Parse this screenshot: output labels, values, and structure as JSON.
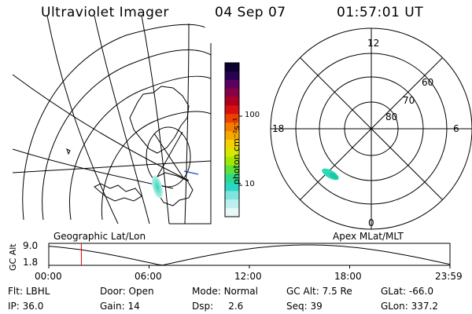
{
  "header": {
    "instrument": "Ultraviolet Imager",
    "date": "04 Sep 07",
    "time": "01:57:01 UT"
  },
  "colorbar": {
    "unit_label": "photon cm⁻²s⁻¹",
    "ticks": [
      "100",
      "10"
    ],
    "colors": [
      "#0b0030",
      "#2a0050",
      "#5a0060",
      "#880046",
      "#b00020",
      "#d81010",
      "#ee4000",
      "#f47a00",
      "#f6a800",
      "#f4d200",
      "#d6e800",
      "#a0e800",
      "#5ee23a",
      "#2fd88a",
      "#2ad6c4",
      "#7fe4e0",
      "#bdefee",
      "#e6f8f8"
    ]
  },
  "geo_map": {
    "label": "Geographic Lat/Lon"
  },
  "polar_plot": {
    "label": "Apex MLat/MLT",
    "mlt_labels": {
      "top": "12",
      "left": "18",
      "right": "6",
      "bottom": "0"
    },
    "lat_labels": [
      "60",
      "70",
      "80"
    ]
  },
  "altitude_track": {
    "axis_label": "GC Alt",
    "ytick_top": "9.0",
    "ytick_bottom": "1.8",
    "xticks": [
      "00:00",
      "06:00",
      "12:00",
      "18:00",
      "23:59"
    ],
    "cursor_time_hours": 1.95
  },
  "info": {
    "filter": {
      "label": "Flt:",
      "value": "LBHL"
    },
    "ip": {
      "label": "IP:",
      "value": "36.0"
    },
    "door": {
      "label": "Door:",
      "value": "Open"
    },
    "gain": {
      "label": "Gain:",
      "value": "14"
    },
    "mode": {
      "label": "Mode:",
      "value": "Normal"
    },
    "dsp": {
      "label": "Dsp:",
      "value": "2.6"
    },
    "gc_alt": {
      "label": "GC Alt:",
      "value": "7.5 Re"
    },
    "seq": {
      "label": "Seq:",
      "value": "39"
    },
    "glat": {
      "label": "GLat:",
      "value": "-66.0"
    },
    "glon": {
      "label": "GLon:",
      "value": "337.2"
    }
  }
}
